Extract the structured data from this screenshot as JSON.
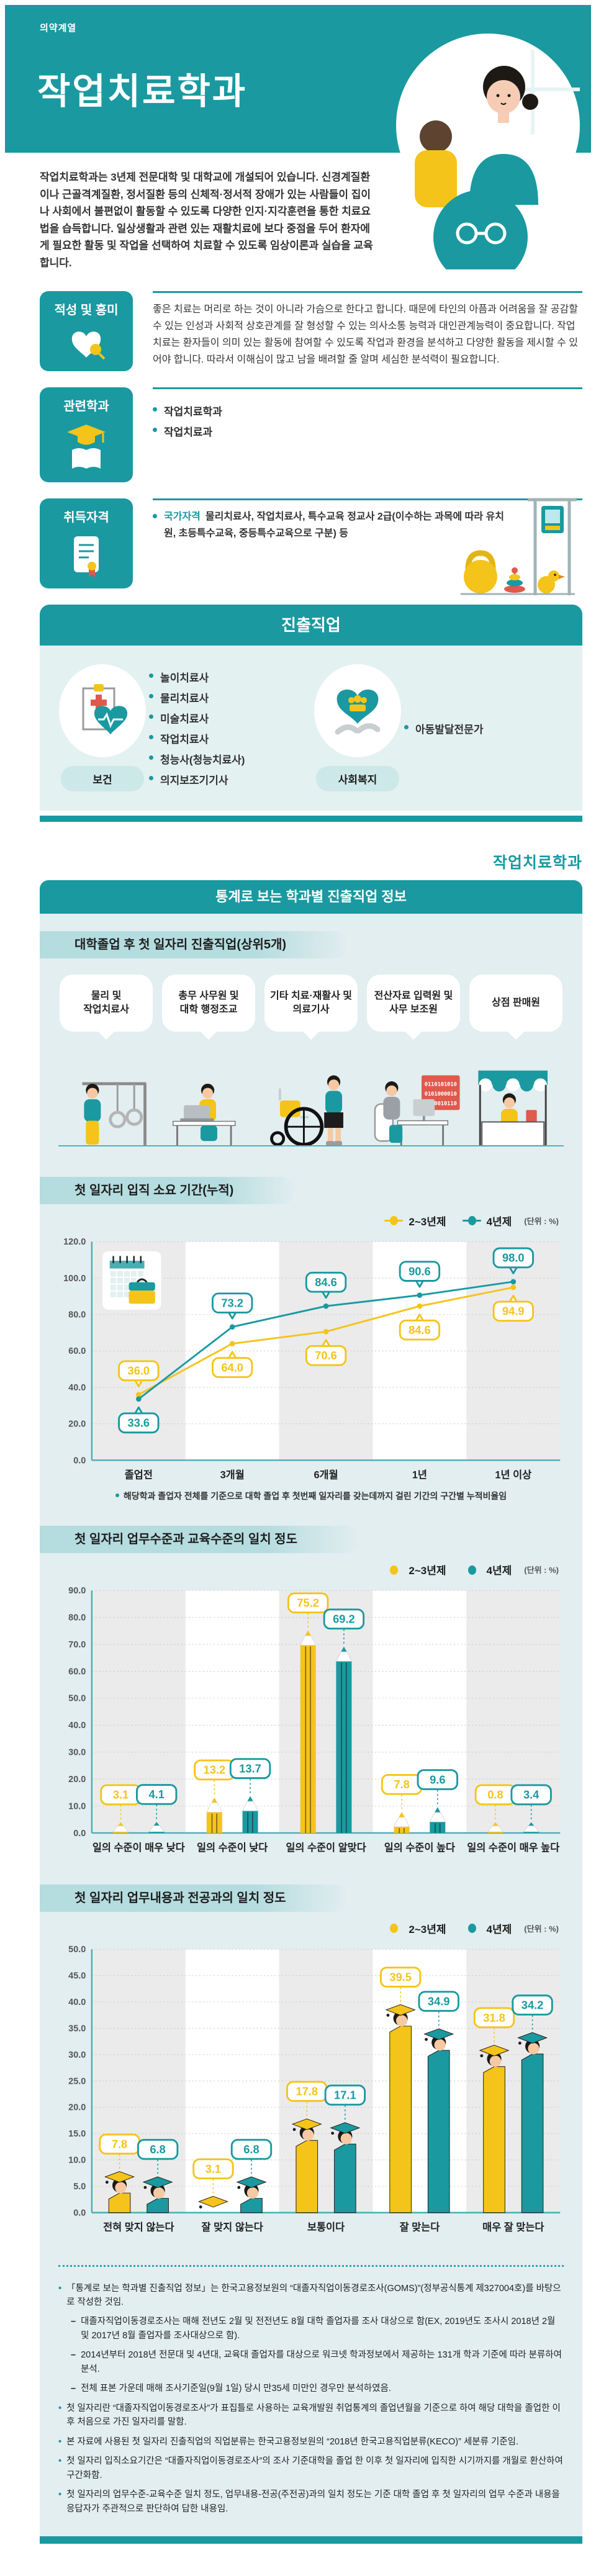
{
  "theme": {
    "teal": "#1a99a0",
    "yellow": "#f5c41a",
    "panel_light": "#e4f1f1",
    "stats_panel": "#e2eef0",
    "band": "#b5dcdf",
    "red": "#e0594d"
  },
  "icons": {
    "aptitude": "heart-magnifier-icon",
    "related": "graduation-cap-book-icon",
    "license": "certificate-icon",
    "health": "clipboard-heart-icon",
    "welfare": "hands-heart-icon",
    "chart_time": "calendar-briefcase-icon"
  },
  "hero": {
    "category": "의약계열",
    "title": "작업치료학과",
    "intro": "작업치료학과는 3년제 전문대학 및 대학교에 개설되어 있습니다. 신경계질환이나 근골격계질환, 정서질환 등의 신체적·정서적 장애가 있는 사람들이 집이나 사회에서 불편없이 활동할 수 있도록 다양한 인지·지각훈련을 통한 치료요법을 습득합니다. 일상생활과 관련 있는 재활치료에 보다 중점을 두어 환자에게 필요한 활동 및 작업을 선택하여 치료할 수 있도록 임상이론과 실습을 교육합니다."
  },
  "sections": {
    "aptitude": {
      "title": "적성 및 흥미",
      "body": "좋은 치료는 머리로 하는 것이 아니라 가슴으로 한다고 합니다. 때문에 타인의 아픔과 어려움을 잘 공감할 수 있는 인성과 사회적 상호관계를 잘 형성할 수 있는 의사소통 능력과 대인관계능력이 중요합니다. 작업치료는 환자들이 의미 있는 활동에 참여할 수 있도록 작업과 환경을 분석하고 다양한 활동을 제시할 수 있어야 합니다. 따라서 이해심이 많고 남을 배려할 줄 알며 세심한 분석력이 필요합니다."
    },
    "related": {
      "title": "관련학과",
      "items": [
        "작업치료학과",
        "작업치료과"
      ]
    },
    "license": {
      "title": "취득자격",
      "label": "국가자격",
      "body": "물리치료사, 작업치료사, 특수교육 정교사 2급(이수하는 과목에 따라 유치원, 초등특수교육, 중등특수교육으로 구분) 등"
    }
  },
  "jobs": {
    "banner": "진출직업",
    "groups": [
      {
        "label": "보건",
        "icon": "clipboard-heart-icon",
        "items": [
          "놀이치료사",
          "물리치료사",
          "미술치료사",
          "작업치료사",
          "청능사(청능치료사)",
          "의지보조기기사"
        ]
      },
      {
        "label": "사회복지",
        "icon": "hands-heart-icon",
        "items": [
          "아동발달전문가"
        ]
      }
    ]
  },
  "stats": {
    "page_title": "작업치료학과",
    "banner": "통계로 보는 학과별 진출직업 정보",
    "top_jobs": {
      "title": "대학졸업 후 첫 일자리 진출직업(상위5개)",
      "items": [
        "물리 및\n작업치료사",
        "총무 사무원 및\n대학 행정조교",
        "기타 치료·재활사 및\n의료기사",
        "전산자료 입력원 및\n사무 보조원",
        "상점 판매원"
      ],
      "binary_lines": [
        "0110101010",
        "0101000010",
        "1110010110"
      ]
    },
    "footnotes": [
      {
        "level": "bullet",
        "text": "「통계로 보는 학과별 진출직업 정보」는 한국고용정보원의 “대졸자직업이동경로조사(GOMS)”(정부공식통계 제327004호)를 바탕으로 작성한 것임."
      },
      {
        "level": "dash",
        "text": "대졸자직업이동경로조사는 매해 전년도 2월 및 전전년도 8월 대학 졸업자를 조사 대상으로 함(EX, 2019년도 조사시 2018년 2월 및 2017년 8월 졸업자를 조사대상으로 함)."
      },
      {
        "level": "dash",
        "text": "2014년부터 2018년 전문대 및 4년대, 교육대 졸업자를 대상으로 워크넷 학과정보에서 제공하는 131개 학과 기준에 따라 분류하여 분석."
      },
      {
        "level": "dash",
        "text": "전체 표본 가운데 매해 조사기준일(9월 1일) 당시 만35세 미만인 경우만 분석하였음."
      },
      {
        "level": "bullet",
        "text": "첫 일자리란 “대졸자직업이동경로조사”가 표집틀로 사용하는 교육개발원 취업통계의 졸업년월을 기준으로 하여 해당 대학을 졸업한 이후 처음으로 가진 일자리를 말함."
      },
      {
        "level": "bullet",
        "text": "본 자료에 사용된 첫 일자리 진출직업의 직업분류는 한국고용정보원의 “2018년 한국고용직업분류(KECO)” 세분류 기준임."
      },
      {
        "level": "bullet",
        "text": "첫 일자리 입직소요기간은 “대졸자직업이동경로조사”의 조사 기준대학을 졸업 한 이후 첫 일자리에 입직한 시기까지를 개월로 환산하여 구간화함."
      },
      {
        "level": "bullet",
        "text": "첫 일자리의 업무수준-교육수준 일치 정도, 업무내용-전공(주전공)과의 일치 정도는 기준 대학 졸업 후 첫 일자리의 업무 수준과 내용을 응답자가 주관적으로 판단하여 답한 내용임."
      }
    ]
  },
  "chart_data": [
    {
      "type": "line",
      "title": "첫 일자리 입직 소요 기간(누적)",
      "unit_label": "(단위 : %)",
      "categories": [
        "졸업전",
        "3개월",
        "6개월",
        "1년",
        "1년 이상"
      ],
      "series": [
        {
          "name": "2~3년제",
          "color": "#f5c41a",
          "values": [
            36.0,
            64.0,
            70.6,
            84.6,
            94.9
          ]
        },
        {
          "name": "4년제",
          "color": "#1a99a0",
          "values": [
            33.6,
            73.2,
            84.6,
            90.6,
            98.0
          ]
        }
      ],
      "ylim": [
        0,
        120
      ],
      "ystep": 20,
      "grid": true,
      "legend_position": "top-right",
      "note": "해당학과 졸업자 전체를 기준으로 대학 졸업 후 첫번째 일자리를 갖는데까지 걸린 기간의 구간별 누적비율임"
    },
    {
      "type": "bar",
      "style": "pencil",
      "title": "첫 일자리 업무수준과 교육수준의 일치 정도",
      "unit_label": "(단위 : %)",
      "categories": [
        "일의 수준이 매우 낮다",
        "일의 수준이 낮다",
        "일의 수준이 알맞다",
        "일의 수준이 높다",
        "일의 수준이 매우 높다"
      ],
      "series": [
        {
          "name": "2~3년제",
          "color": "#f5c41a",
          "values": [
            3.1,
            13.2,
            75.2,
            7.8,
            0.8
          ]
        },
        {
          "name": "4년제",
          "color": "#1a99a0",
          "values": [
            4.1,
            13.7,
            69.2,
            9.6,
            3.4
          ]
        }
      ],
      "ylim": [
        0,
        90
      ],
      "ystep": 10,
      "grid": true,
      "legend_position": "top-right"
    },
    {
      "type": "bar",
      "style": "graduate",
      "title": "첫 일자리 업무내용과 전공과의 일치 정도",
      "unit_label": "(단위 : %)",
      "categories": [
        "전혀 맞지 않는다",
        "잘 맞지 않는다",
        "보통이다",
        "잘 맞는다",
        "매우 잘 맞는다"
      ],
      "series": [
        {
          "name": "2~3년제",
          "color": "#f5c41a",
          "values": [
            7.8,
            3.1,
            17.8,
            39.5,
            31.8
          ]
        },
        {
          "name": "4년제",
          "color": "#1a99a0",
          "values": [
            6.8,
            6.8,
            17.1,
            34.9,
            34.2
          ]
        }
      ],
      "ylim": [
        0,
        50
      ],
      "ystep": 5,
      "grid": true,
      "legend_position": "top-right"
    }
  ]
}
